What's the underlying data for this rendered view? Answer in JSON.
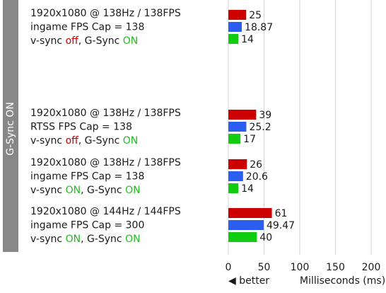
{
  "side_label": "G-Sync ON",
  "colors": {
    "grid": "#d6d6d6",
    "text": "#1a1a1a",
    "red_text": "#c00000",
    "green_text": "#22bb22",
    "side_bar": "#888888"
  },
  "chart_data": {
    "type": "bar",
    "orientation": "horizontal",
    "xlabel": "Milliseconds (ms)",
    "x_ticks": [
      0,
      50,
      100,
      150,
      200
    ],
    "xlim": [
      0,
      210
    ],
    "grid": true,
    "footnote": "◀ better",
    "series_colors": [
      "#cc0000",
      "#2b5ef0",
      "#11cc11"
    ],
    "groups": [
      {
        "label_lines": [
          [
            {
              "t": "1920x1080 @ 138Hz / 138FPS",
              "c": "normal"
            }
          ],
          [
            {
              "t": "ingame FPS Cap = 138",
              "c": "normal"
            }
          ],
          [
            {
              "t": "v-sync ",
              "c": "normal"
            },
            {
              "t": "off",
              "c": "red"
            },
            {
              "t": ", G-Sync ",
              "c": "normal"
            },
            {
              "t": "ON",
              "c": "green"
            }
          ]
        ],
        "values": [
          25,
          18.87,
          14
        ],
        "value_labels": [
          "25",
          "18.87",
          "14"
        ]
      },
      {
        "label_lines": [
          [
            {
              "t": "1920x1080 @ 138Hz / 138FPS",
              "c": "normal"
            }
          ],
          [
            {
              "t": "RTSS FPS Cap = 138",
              "c": "normal"
            }
          ],
          [
            {
              "t": "v-sync ",
              "c": "normal"
            },
            {
              "t": "off",
              "c": "red"
            },
            {
              "t": ", G-Sync ",
              "c": "normal"
            },
            {
              "t": "ON",
              "c": "green"
            }
          ]
        ],
        "values": [
          39,
          25.2,
          17
        ],
        "value_labels": [
          "39",
          "25.2",
          "17"
        ]
      },
      {
        "label_lines": [
          [
            {
              "t": "1920x1080 @ 138Hz / 138FPS",
              "c": "normal"
            }
          ],
          [
            {
              "t": "ingame FPS Cap = 138",
              "c": "normal"
            }
          ],
          [
            {
              "t": "v-sync ",
              "c": "normal"
            },
            {
              "t": "ON",
              "c": "green"
            },
            {
              "t": ", G-Sync ",
              "c": "normal"
            },
            {
              "t": "ON",
              "c": "green"
            }
          ]
        ],
        "values": [
          26,
          20.6,
          14
        ],
        "value_labels": [
          "26",
          "20.6",
          "14"
        ]
      },
      {
        "label_lines": [
          [
            {
              "t": "1920x1080 @ 144Hz / 144FPS",
              "c": "normal"
            }
          ],
          [
            {
              "t": "ingame FPS Cap = 300",
              "c": "normal"
            }
          ],
          [
            {
              "t": "v-sync ",
              "c": "normal"
            },
            {
              "t": "ON",
              "c": "green"
            },
            {
              "t": ", G-Sync ",
              "c": "normal"
            },
            {
              "t": "ON",
              "c": "green"
            }
          ]
        ],
        "values": [
          61,
          49.47,
          40
        ],
        "value_labels": [
          "61",
          "49.47",
          "40"
        ]
      }
    ]
  }
}
